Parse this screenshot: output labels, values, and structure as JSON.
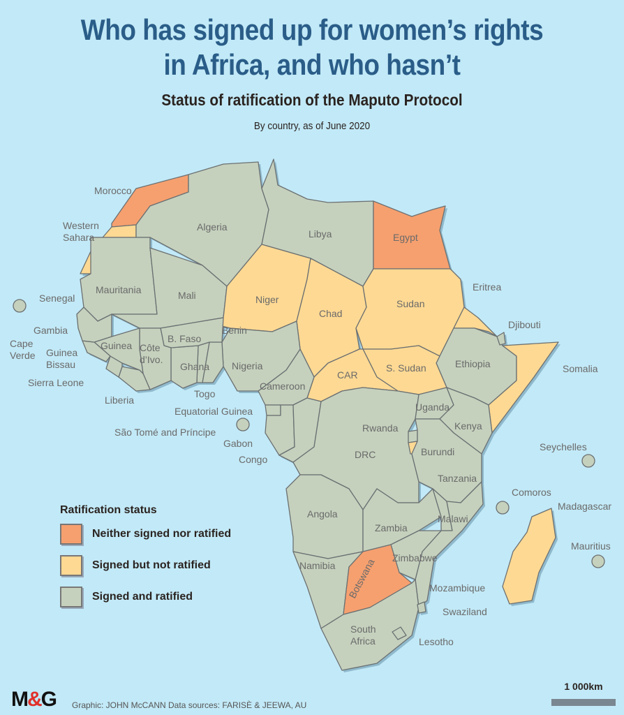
{
  "title_line1": "Who has signed up for women’s rights",
  "title_line2": "in Africa, and who hasn’t",
  "subtitle": "Status of ratification of the Maputo Protocol",
  "note": "By country, as of June 2020",
  "colors": {
    "background": "#c2e9f7",
    "neither": "#f6a06f",
    "signed": "#fed993",
    "ratified": "#c5d1bd",
    "coast": "#5b7fc4",
    "title": "#2a5d88"
  },
  "legend": {
    "title": "Ratification status",
    "items": [
      {
        "label": "Neither signed nor ratified",
        "status": "neither"
      },
      {
        "label": "Signed but not ratified",
        "status": "signed"
      },
      {
        "label": "Signed and ratified",
        "status": "ratified"
      }
    ]
  },
  "countries": {
    "morocco": {
      "name": "Morocco",
      "status": "neither"
    },
    "wsahara": {
      "name": "Western Sahara",
      "status": "signed"
    },
    "algeria": {
      "name": "Algeria",
      "status": "ratified"
    },
    "libya": {
      "name": "Libya",
      "status": "ratified"
    },
    "egypt": {
      "name": "Egypt",
      "status": "neither"
    },
    "mauritania": {
      "name": "Mauritania",
      "status": "ratified"
    },
    "mali": {
      "name": "Mali",
      "status": "ratified"
    },
    "niger": {
      "name": "Niger",
      "status": "signed"
    },
    "chad": {
      "name": "Chad",
      "status": "signed"
    },
    "sudan": {
      "name": "Sudan",
      "status": "signed"
    },
    "eritrea": {
      "name": "Eritrea",
      "status": "signed"
    },
    "djibouti": {
      "name": "Djibouti",
      "status": "ratified"
    },
    "ethiopia": {
      "name": "Ethiopia",
      "status": "ratified"
    },
    "somalia": {
      "name": "Somalia",
      "status": "signed"
    },
    "ssudan": {
      "name": "S. Sudan",
      "status": "signed"
    },
    "car": {
      "name": "CAR",
      "status": "signed"
    },
    "cameroon": {
      "name": "Cameroon",
      "status": "ratified"
    },
    "nigeria": {
      "name": "Nigeria",
      "status": "ratified"
    },
    "benin": {
      "name": "Benin",
      "status": "ratified"
    },
    "togo": {
      "name": "Togo",
      "status": "ratified"
    },
    "ghana": {
      "name": "Ghana",
      "status": "ratified"
    },
    "bfaso": {
      "name": "B. Faso",
      "status": "ratified"
    },
    "civ": {
      "name": "Côte d’Ivo.",
      "status": "ratified"
    },
    "liberia": {
      "name": "Liberia",
      "status": "ratified"
    },
    "sleone": {
      "name": "Sierra Leone",
      "status": "ratified"
    },
    "guinea": {
      "name": "Guinea",
      "status": "ratified"
    },
    "gbissau": {
      "name": "Guinea Bissau",
      "status": "ratified"
    },
    "gambia": {
      "name": "Gambia",
      "status": "ratified"
    },
    "senegal": {
      "name": "Senegal",
      "status": "ratified"
    },
    "capeverde": {
      "name": "Cape Verde",
      "status": "ratified"
    },
    "eqguinea": {
      "name": "Equatorial Guinea",
      "status": "ratified"
    },
    "stp": {
      "name": "São Tomé and Príncipe",
      "status": "ratified"
    },
    "gabon": {
      "name": "Gabon",
      "status": "ratified"
    },
    "congo": {
      "name": "Congo",
      "status": "ratified"
    },
    "drc": {
      "name": "DRC",
      "status": "ratified"
    },
    "uganda": {
      "name": "Uganda",
      "status": "ratified"
    },
    "kenya": {
      "name": "Kenya",
      "status": "ratified"
    },
    "rwanda": {
      "name": "Rwanda",
      "status": "ratified"
    },
    "burundi": {
      "name": "Burundi",
      "status": "signed"
    },
    "tanzania": {
      "name": "Tanzania",
      "status": "ratified"
    },
    "seychelles": {
      "name": "Seychelles",
      "status": "ratified"
    },
    "comoros": {
      "name": "Comoros",
      "status": "ratified"
    },
    "madagascar": {
      "name": "Madagascar",
      "status": "signed"
    },
    "mauritius": {
      "name": "Mauritius",
      "status": "ratified"
    },
    "angola": {
      "name": "Angola",
      "status": "ratified"
    },
    "zambia": {
      "name": "Zambia",
      "status": "ratified"
    },
    "malawi": {
      "name": "Malawi",
      "status": "ratified"
    },
    "mozambique": {
      "name": "Mozambique",
      "status": "ratified"
    },
    "zimbabwe": {
      "name": "Zimbabwe",
      "status": "ratified"
    },
    "namibia": {
      "name": "Namibia",
      "status": "ratified"
    },
    "botswana": {
      "name": "Botswana",
      "status": "neither"
    },
    "safrica": {
      "name": "South Africa",
      "status": "ratified"
    },
    "swaziland": {
      "name": "Swaziland",
      "status": "ratified"
    },
    "lesotho": {
      "name": "Lesotho",
      "status": "ratified"
    }
  },
  "footer": {
    "logo": "M&G",
    "credit": "Graphic: JOHN McCANN  Data sources: FARISÈ & JEEWA, AU",
    "scale_label": "1 000km"
  }
}
